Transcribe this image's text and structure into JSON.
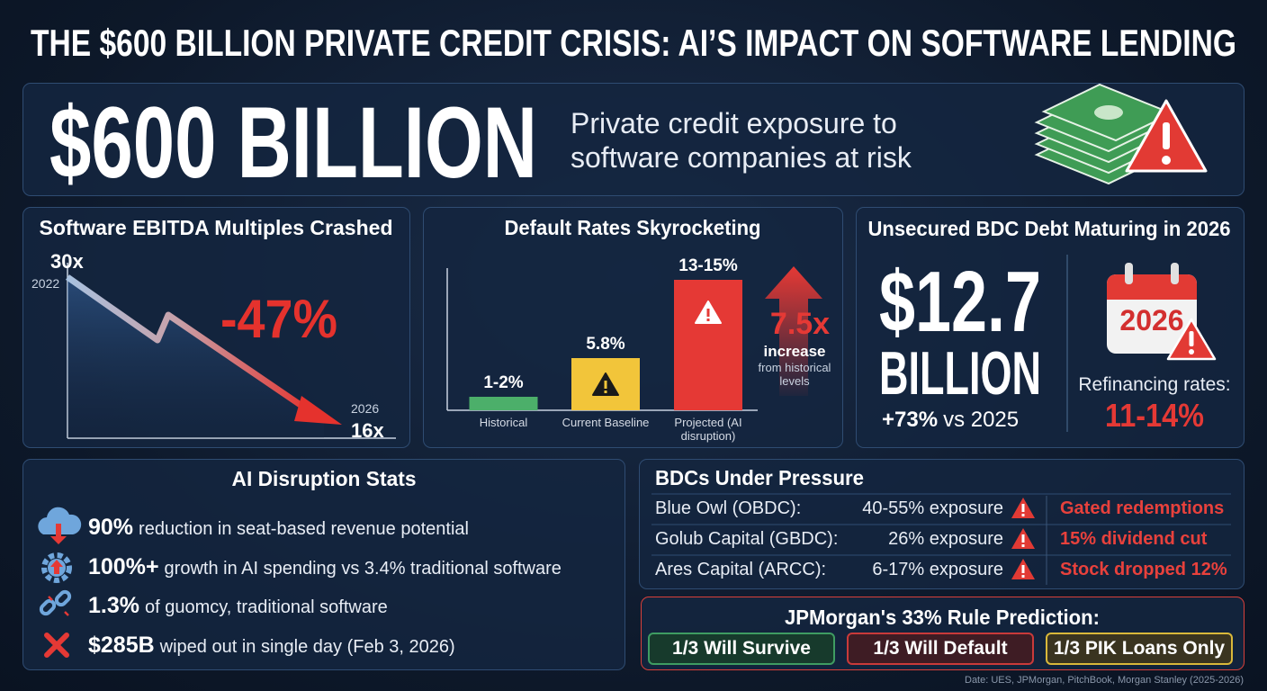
{
  "title": "THE $600 BILLION PRIVATE CREDIT CRISIS: AI’S IMPACT ON SOFTWARE LENDING",
  "hero": {
    "figure": "$600 BILLION",
    "text": "Private credit exposure to software companies at risk"
  },
  "multiples": {
    "title": "Software EBITDA Multiples Crashed",
    "start_value": "30x",
    "start_year": "2022",
    "end_value": "16x",
    "end_year": "2026",
    "change": "-47%"
  },
  "defaults": {
    "title": "Default Rates Skyrocketing",
    "type": "bar",
    "categories": [
      "Historical",
      "Current Baseline",
      "Projected (AI disruption)"
    ],
    "values": [
      1.5,
      5.8,
      14.5
    ],
    "value_labels": [
      "1-2%",
      "5.8%",
      "13-15%"
    ],
    "colors": [
      "#4caf6a",
      "#f2c53a",
      "#e53935"
    ],
    "ylim": [
      0,
      16
    ],
    "callout": {
      "figure": "7.5x",
      "word": "increase",
      "note": "from historical levels"
    }
  },
  "bdc_debt": {
    "title": "Unsecured BDC Debt Maturing in 2026",
    "figure": "$12.7",
    "unit": "BILLION",
    "change": "+73%",
    "change_note": "vs 2025",
    "calendar": "2026",
    "refi_label": "Refinancing rates:",
    "refi_value": "11-14%"
  },
  "ai_stats": {
    "title": "AI Disruption Stats",
    "items": [
      {
        "figure": "90%",
        "text": "reduction in seat-based revenue potential"
      },
      {
        "figure": "100%+",
        "text": "growth in AI spending vs 3.4% traditional software"
      },
      {
        "figure": "1.3%",
        "text": "of guomcy, traditional software"
      },
      {
        "figure": "$285B",
        "text": "wiped out in single day (Feb 3, 2026)"
      }
    ]
  },
  "bdcs": {
    "title": "BDCs Under Pressure",
    "rows": [
      {
        "name": "Blue Owl (OBDC):",
        "exposure": "40-55% exposure",
        "impact": "Gated redemptions"
      },
      {
        "name": "Golub Capital (GBDC):",
        "exposure": "26% exposure",
        "impact": "15% dividend cut"
      },
      {
        "name": "Ares Capital (ARCC):",
        "exposure": "6-17% exposure",
        "impact": "Stock dropped 12%"
      }
    ]
  },
  "jpm": {
    "title": "JPMorgan's 33% Rule Prediction:",
    "outcomes": [
      "1/3 Will Survive",
      "1/3 Will Default",
      "1/3 PIK Loans Only"
    ]
  },
  "source": "Date: UES, JPMorgan, PitchBook, Morgan Stanley (2025-2026)"
}
